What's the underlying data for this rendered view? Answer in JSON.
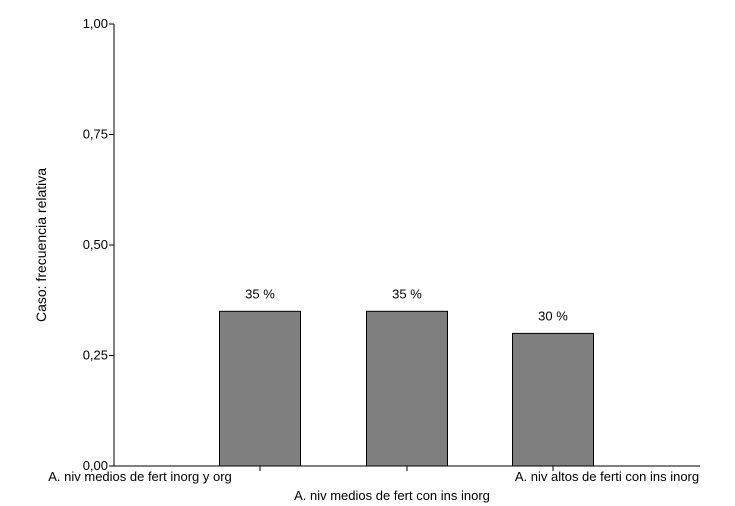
{
  "chart_data": {
    "type": "bar",
    "ylabel": "Caso: frecuencia relativa",
    "ylim": [
      0,
      1
    ],
    "yticks": [
      "0,00",
      "0,25",
      "0,50",
      "0,75",
      "1,00"
    ],
    "ytick_values": [
      0,
      0.25,
      0.5,
      0.75,
      1
    ],
    "categories": [
      "A. niv medios de fert inorg y org",
      "A. niv medios de fert con ins inorg",
      "A. niv altos de ferti con ins inorg"
    ],
    "values": [
      0.35,
      0.35,
      0.3
    ],
    "data_labels": [
      "35 %",
      "35 %",
      "30 %"
    ],
    "grid": false,
    "bar_color": "#7f7f7f"
  }
}
